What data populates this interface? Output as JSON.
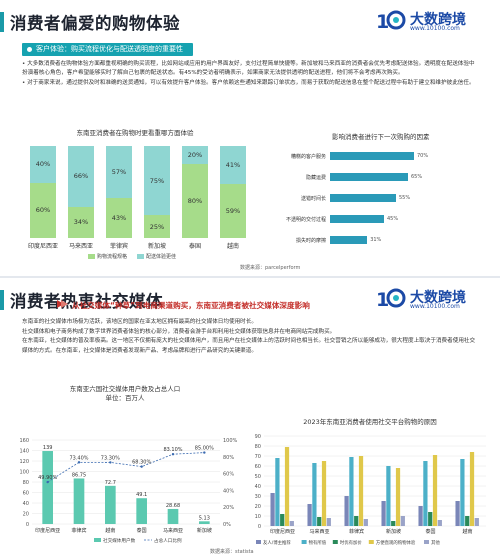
{
  "panel1": {
    "title": "消费者偏爱的购物体验",
    "logo": {
      "brand": "大数跨境",
      "url": "www.10100.com"
    },
    "banner": "客户体验：购买流程优化与配送透明度的重要性",
    "bullets": [
      "• 大多数消费者在购物体验方面都重视明确的购买流程，比如网站或应用的用户界面友好，支付过程简单快捷等。新加坡和马来西亚的消费者会优先考虑配送体验。透明度在配送体验中扮演着核心角色，客户希望能够实时了解自己包裹的配送状态。有45%的受访者明确表示，如果商家无法提供透明的配送进程，他们将不会考虑再次购买。",
      "• 对于商家来说，通过提供及时和准确的送货通知，可以有效提升客户体验。客户依赖这些通知来跟踪订单状态，而易于获取的配送信息在整个配送过程中有助于建立和维护彼此信任。"
    ],
    "source": "数据来源：parcelperform",
    "chart_left": {
      "type": "bar",
      "title": "东南亚消费者在购物时更看重哪方面体验",
      "categories": [
        "印度尼西亚",
        "马来西亚",
        "菲律宾",
        "新加坡",
        "泰国",
        "越南"
      ],
      "series": [
        {
          "name": "购物流程规格",
          "values": [
            60,
            34,
            43,
            25,
            80,
            59
          ],
          "color": "#a6dc8a"
        },
        {
          "name": "配送体验更佳",
          "values": [
            40,
            66,
            57,
            75,
            20,
            41
          ],
          "color": "#8fd6d2"
        }
      ],
      "ylim": [
        0,
        100
      ]
    },
    "chart_right": {
      "type": "bar",
      "title": "影响消费者进行下一次购购的因素",
      "categories": [
        "糟糕的客户服务",
        "隐藏运费",
        "送错时间长",
        "不透明的交付过程",
        "损失时的摩擦"
      ],
      "values": [
        70,
        65,
        55,
        45,
        31
      ],
      "value_labels": [
        "70%",
        "65%",
        "55%",
        "45%",
        "31%"
      ],
      "xlim": [
        0,
        100
      ]
    }
  },
  "panel2": {
    "title": "消费者热衷社交媒体",
    "logo": {
      "brand": "大数跨境",
      "url": "www.10100.com"
    },
    "subtitle": "从社交媒体“种草”到电商渠道购买，东南亚消费者被社交媒体深度影响",
    "lead": [
      "东南亚的社交媒体市场极为活跃，该地区的国家在亚太地区拥有最高的社交媒体日均使用时长。",
      "社交媒体和电子商务构成了数字世界消费者体验的核心部分，消费者会游手台和利用社交媒体获取信息并在电商网站完成购买。",
      "在东南亚，社交媒体的普及率极高。这一地区不仅拥有庞大的社交媒体用户，而且用户在社交媒体上的活跃时间也相当长。社交营销之所以能够成功，很大程度上取决于消费者使用社交媒体的方式。在东南亚，社交媒体是消费者发现新产品、考虑品牌和进行产品研究的关键渠道。"
    ],
    "source": "数据来源：statista",
    "chart_left": {
      "type": "bar",
      "title": "东南亚六国社交媒体用户数及占总人口",
      "subtitle": "单位：百万人",
      "categories": [
        "印度尼西亚",
        "菲律宾",
        "越南",
        "泰国",
        "马来西亚",
        "新加坡"
      ],
      "values": [
        139,
        86.75,
        72.7,
        49.1,
        28.68,
        5.13
      ],
      "value_labels": [
        "139",
        "86.75",
        "72.7",
        "49.1",
        "28.68",
        "5.13"
      ],
      "line_values": [
        49.9,
        73.4,
        73.3,
        68.3,
        83.1,
        85.0
      ],
      "line_labels": [
        "49.90%",
        "73.40%",
        "73.30%",
        "68.30%",
        "83.10%",
        "85.00%"
      ],
      "legend": [
        "社交媒体用户数",
        "占总人口比例"
      ],
      "ylim": [
        0,
        160
      ],
      "y2lim": [
        0,
        100
      ],
      "yticks": [
        "160",
        "140",
        "120",
        "100",
        "80",
        "60",
        "40",
        "20",
        "0"
      ],
      "y2ticks": [
        "100%",
        "80%",
        "60%",
        "40%",
        "20%",
        "0%"
      ]
    },
    "chart_right": {
      "type": "bar",
      "title": "2023年东南亚消费者使用社交平台购物的原因",
      "categories": [
        "印度尼西亚",
        "马来西亚",
        "菲律宾",
        "新加坡",
        "泰国",
        "越南"
      ],
      "series": [
        {
          "name": "友人/博主推荐",
          "values": [
            33,
            22,
            30,
            25,
            20,
            25
          ],
          "color": "#7a86b8"
        },
        {
          "name": "物有所值",
          "values": [
            68,
            63,
            69,
            60,
            65,
            67
          ],
          "color": "#4cb0c8"
        },
        {
          "name": "时优有加价",
          "values": [
            12,
            9,
            10,
            5,
            14,
            10
          ],
          "color": "#2a8a5a"
        },
        {
          "name": "方便直观的购物体验",
          "values": [
            79,
            65,
            70,
            58,
            71,
            74
          ],
          "color": "#e0c84a"
        },
        {
          "name": "其他",
          "values": [
            5,
            8,
            7,
            10,
            6,
            8
          ],
          "color": "#9aa3c8"
        }
      ],
      "ylim": [
        0,
        90
      ],
      "yticks": [
        "90",
        "80",
        "70",
        "60",
        "50",
        "40",
        "30",
        "20",
        "10",
        "0"
      ]
    }
  }
}
